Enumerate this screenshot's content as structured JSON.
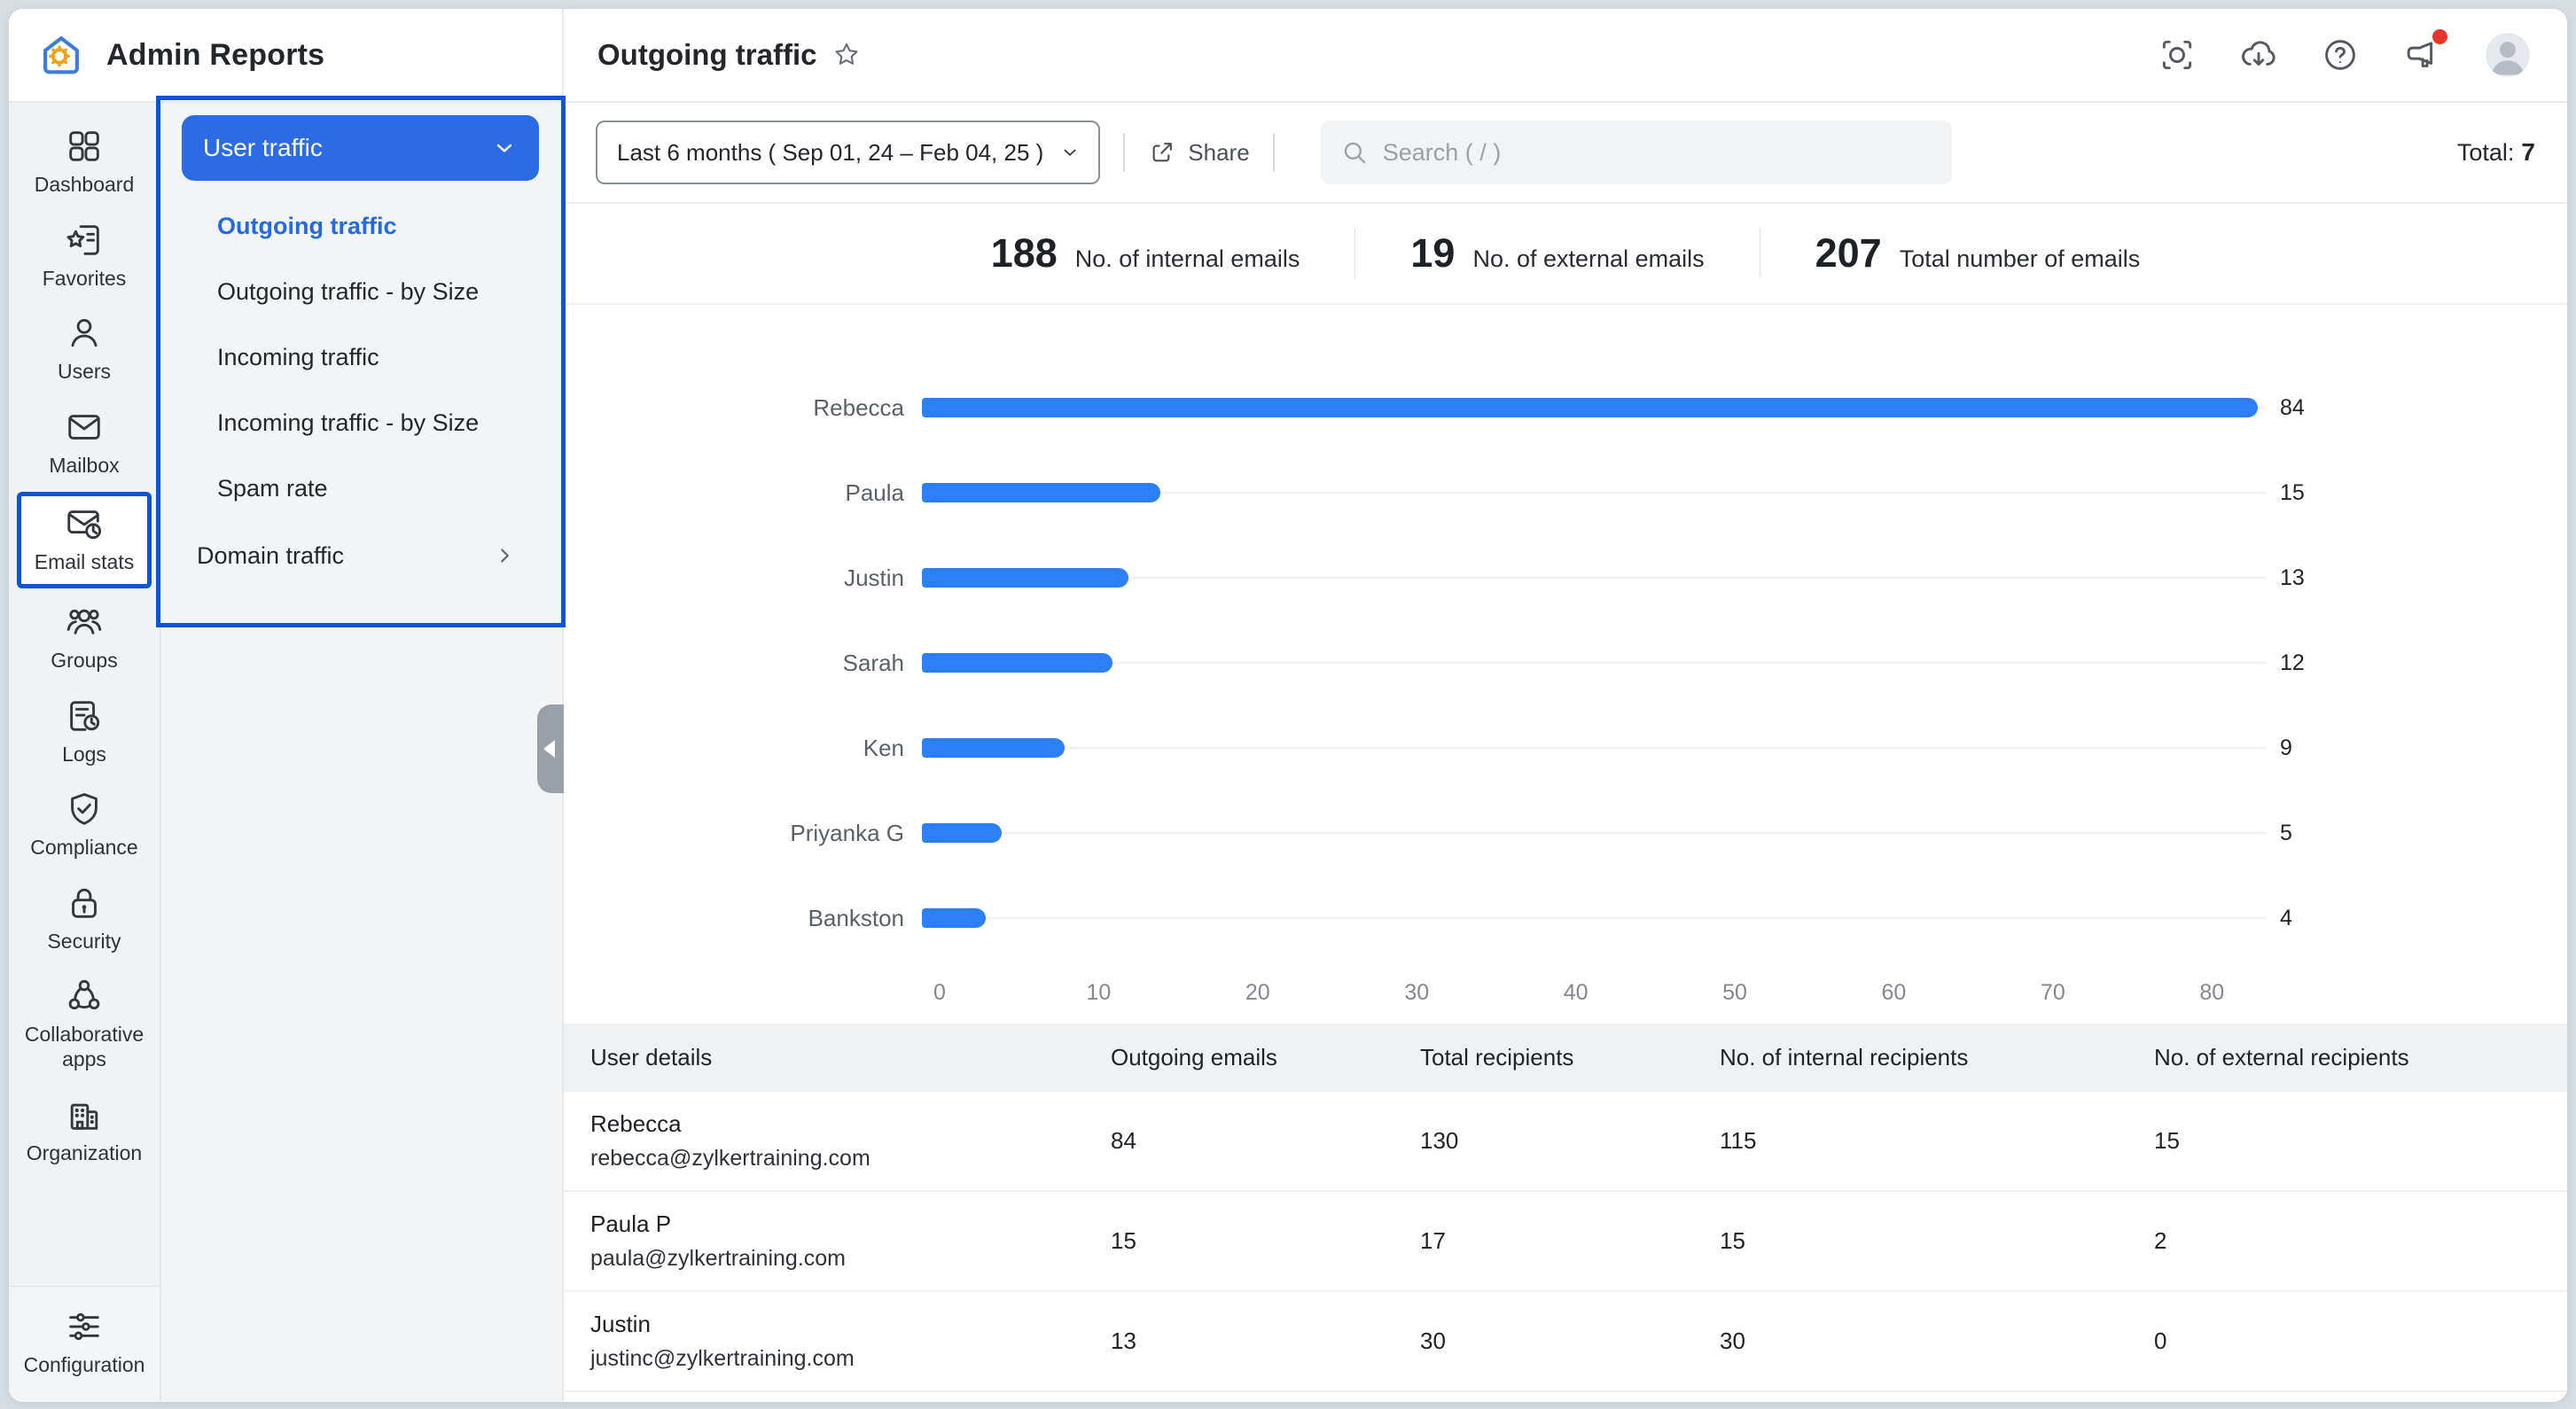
{
  "app": {
    "title": "Admin Reports"
  },
  "topbar": {
    "icons": [
      {
        "name": "screen-capture-icon"
      },
      {
        "name": "cloud-download-icon"
      },
      {
        "name": "help-icon"
      },
      {
        "name": "announcements-icon",
        "badge": true
      },
      {
        "name": "avatar"
      }
    ],
    "badge_color": "#e5372b"
  },
  "page": {
    "title": "Outgoing traffic",
    "total_label": "Total:",
    "total_value": "7"
  },
  "toolbar": {
    "date_range": "Last 6 months ( Sep 01, 24 – Feb 04, 25 )",
    "share_label": "Share",
    "search_placeholder": "Search ( / )"
  },
  "sidebar": {
    "items": [
      {
        "label": "Dashboard",
        "icon": "dashboard-icon",
        "active": false,
        "annotated": false
      },
      {
        "label": "Favorites",
        "icon": "favorites-icon",
        "active": false,
        "annotated": false
      },
      {
        "label": "Users",
        "icon": "users-icon",
        "active": false,
        "annotated": false
      },
      {
        "label": "Mailbox",
        "icon": "mailbox-icon",
        "active": false,
        "annotated": false
      },
      {
        "label": "Email stats",
        "icon": "email-stats-icon",
        "active": true,
        "annotated": true
      },
      {
        "label": "Groups",
        "icon": "groups-icon",
        "active": false,
        "annotated": false
      },
      {
        "label": "Logs",
        "icon": "logs-icon",
        "active": false,
        "annotated": false
      },
      {
        "label": "Compliance",
        "icon": "compliance-icon",
        "active": false,
        "annotated": false
      },
      {
        "label": "Security",
        "icon": "security-icon",
        "active": false,
        "annotated": false
      },
      {
        "label": "Collaborative apps",
        "icon": "collaborative-apps-icon",
        "active": false,
        "annotated": false
      },
      {
        "label": "Organization",
        "icon": "organization-icon",
        "active": false,
        "annotated": false
      }
    ],
    "bottom_item": {
      "label": "Configuration",
      "icon": "configuration-icon"
    }
  },
  "submenu": {
    "group_label": "User traffic",
    "items": [
      {
        "label": "Outgoing traffic",
        "active": true
      },
      {
        "label": "Outgoing traffic - by Size",
        "active": false
      },
      {
        "label": "Incoming traffic",
        "active": false
      },
      {
        "label": "Incoming traffic - by Size",
        "active": false
      },
      {
        "label": "Spam rate",
        "active": false
      }
    ],
    "sibling_group": {
      "label": "Domain traffic"
    }
  },
  "stats": [
    {
      "value": "188",
      "label": "No. of internal emails"
    },
    {
      "value": "19",
      "label": "No. of external emails"
    },
    {
      "value": "207",
      "label": "Total number of emails"
    }
  ],
  "chart_data": {
    "type": "bar",
    "orientation": "horizontal",
    "categories": [
      "Rebecca",
      "Paula",
      "Justin",
      "Sarah",
      "Ken",
      "Priyanka G",
      "Bankston"
    ],
    "values": [
      84,
      15,
      13,
      12,
      9,
      5,
      4
    ],
    "x_ticks": [
      0,
      10,
      20,
      30,
      40,
      50,
      60,
      70,
      80
    ],
    "xlim": [
      0,
      84.5
    ],
    "title": "",
    "xlabel": "",
    "ylabel": "",
    "grid": false,
    "legend": false,
    "value_labels": true,
    "bar_color": "#2d7ff5"
  },
  "table": {
    "columns": [
      "User details",
      "Outgoing emails",
      "Total recipients",
      "No. of internal recipients",
      "No. of external recipients"
    ],
    "rows": [
      {
        "name": "Rebecca",
        "email": "rebecca@zylkertraining.com",
        "values": [
          "84",
          "130",
          "115",
          "15"
        ]
      },
      {
        "name": "Paula P",
        "email": "paula@zylkertraining.com",
        "values": [
          "15",
          "17",
          "15",
          "2"
        ]
      },
      {
        "name": "Justin",
        "email": "justinc@zylkertraining.com",
        "values": [
          "13",
          "30",
          "30",
          "0"
        ]
      }
    ]
  },
  "colors": {
    "accent": "#2b6be4",
    "bar_blue": "#2d7ff5",
    "link_blue": "#2368e4",
    "annotation_blue": "#0d55d3",
    "badge_red": "#e5372b"
  }
}
